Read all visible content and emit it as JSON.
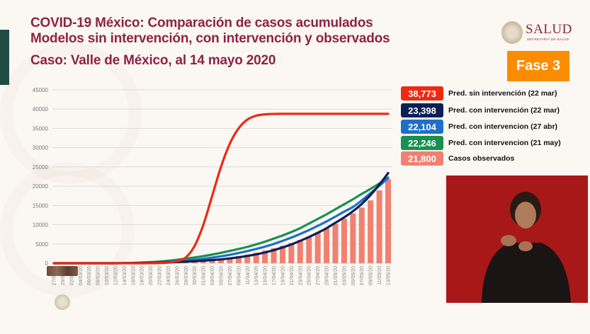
{
  "header": {
    "title_line1": "COVID-19 México: Comparación de casos acumulados",
    "title_line2": "Modelos sin intervención, con intervención y observados",
    "subtitle": "Caso: Valle de México, al 14 mayo 2020",
    "logo_text": "SALUD",
    "logo_subtext": "SECRETARÍA DE SALUD",
    "phase_badge": "Fase 3"
  },
  "colors": {
    "title": "#8e2344",
    "phase": "#fb8c00",
    "red": "#f02810",
    "navy": "#0c1f55",
    "blue": "#1f6fc8",
    "green": "#1a9050",
    "observed": "#f08070"
  },
  "chart_data": {
    "type": "line+bar",
    "ylim": [
      0,
      45000
    ],
    "yticks": [
      "0",
      "5000",
      "10000",
      "15000",
      "20000",
      "25000",
      "30000",
      "35000",
      "40000",
      "45000"
    ],
    "grid": true,
    "legend_position": "right",
    "x": [
      "27/02/20",
      "29/02/20",
      "02/03/20",
      "04/03/20",
      "06/03/20",
      "08/03/20",
      "10/03/20",
      "12/03/20",
      "14/03/20",
      "16/03/20",
      "18/03/20",
      "20/03/20",
      "22/03/20",
      "24/03/20",
      "26/03/20",
      "28/03/20",
      "30/03/20",
      "01/04/20",
      "03/04/20",
      "05/04/20",
      "07/04/20",
      "09/04/20",
      "11/04/20",
      "13/04/20",
      "15/04/20",
      "17/04/20",
      "19/04/20",
      "21/04/20",
      "23/04/20",
      "25/04/20",
      "27/04/20",
      "29/04/20",
      "01/05/20",
      "03/05/20",
      "05/05/20",
      "07/05/20",
      "09/05/20",
      "11/05/20",
      "13/05/20"
    ],
    "series": [
      {
        "name": "Pred. sin intervención (22 mar)",
        "final": "38,773",
        "color_key": "red",
        "kind": "line",
        "values": [
          0,
          0,
          0,
          0,
          0,
          0,
          0,
          0,
          0,
          0,
          0,
          10,
          50,
          150,
          500,
          1500,
          4500,
          10000,
          17500,
          25000,
          31000,
          35000,
          37300,
          38300,
          38650,
          38750,
          38773,
          38773,
          38773,
          38773,
          38773,
          38773,
          38773,
          38773,
          38773,
          38773,
          38773,
          38773,
          38773
        ]
      },
      {
        "name": "Pred. con intervención (22 mar)",
        "final": "23,398",
        "color_key": "navy",
        "kind": "line",
        "values": [
          0,
          0,
          0,
          0,
          0,
          0,
          0,
          0,
          20,
          40,
          70,
          100,
          150,
          220,
          300,
          400,
          520,
          660,
          820,
          1000,
          1250,
          1550,
          1900,
          2300,
          2800,
          3400,
          4100,
          4900,
          5800,
          6800,
          7900,
          9100,
          10500,
          11900,
          13500,
          15400,
          17700,
          20400,
          23398
        ]
      },
      {
        "name": "Pred. con intervencion (27 abr)",
        "final": "22,104",
        "color_key": "blue",
        "kind": "line",
        "values": [
          0,
          0,
          0,
          0,
          0,
          0,
          0,
          0,
          30,
          60,
          100,
          150,
          250,
          350,
          500,
          700,
          900,
          1150,
          1450,
          1800,
          2200,
          2650,
          3150,
          3700,
          4300,
          5000,
          5800,
          6650,
          7600,
          8600,
          9700,
          10850,
          12100,
          13400,
          14600,
          16300,
          18200,
          20100,
          22104
        ]
      },
      {
        "name": "Pred. con intervencion (21 may)",
        "final": "22,246",
        "color_key": "green",
        "kind": "line",
        "values": [
          0,
          0,
          0,
          0,
          0,
          0,
          0,
          0,
          50,
          100,
          200,
          300,
          450,
          650,
          900,
          1200,
          1500,
          1850,
          2250,
          2700,
          3200,
          3700,
          4250,
          4900,
          5600,
          6400,
          7200,
          8100,
          9100,
          10300,
          11500,
          12700,
          14000,
          15300,
          16600,
          18000,
          19300,
          20700,
          22246
        ]
      },
      {
        "name": "Casos observados",
        "final": "21,800",
        "color_key": "observed",
        "kind": "bar",
        "values": [
          0,
          0,
          0,
          0,
          0,
          0,
          0,
          0,
          0,
          0,
          0,
          0,
          0,
          20,
          60,
          150,
          300,
          500,
          750,
          1050,
          1400,
          1800,
          2250,
          2750,
          3300,
          3900,
          4550,
          5250,
          6050,
          6950,
          7950,
          9050,
          10250,
          11550,
          12950,
          14450,
          16300,
          18900,
          21800
        ]
      }
    ]
  }
}
